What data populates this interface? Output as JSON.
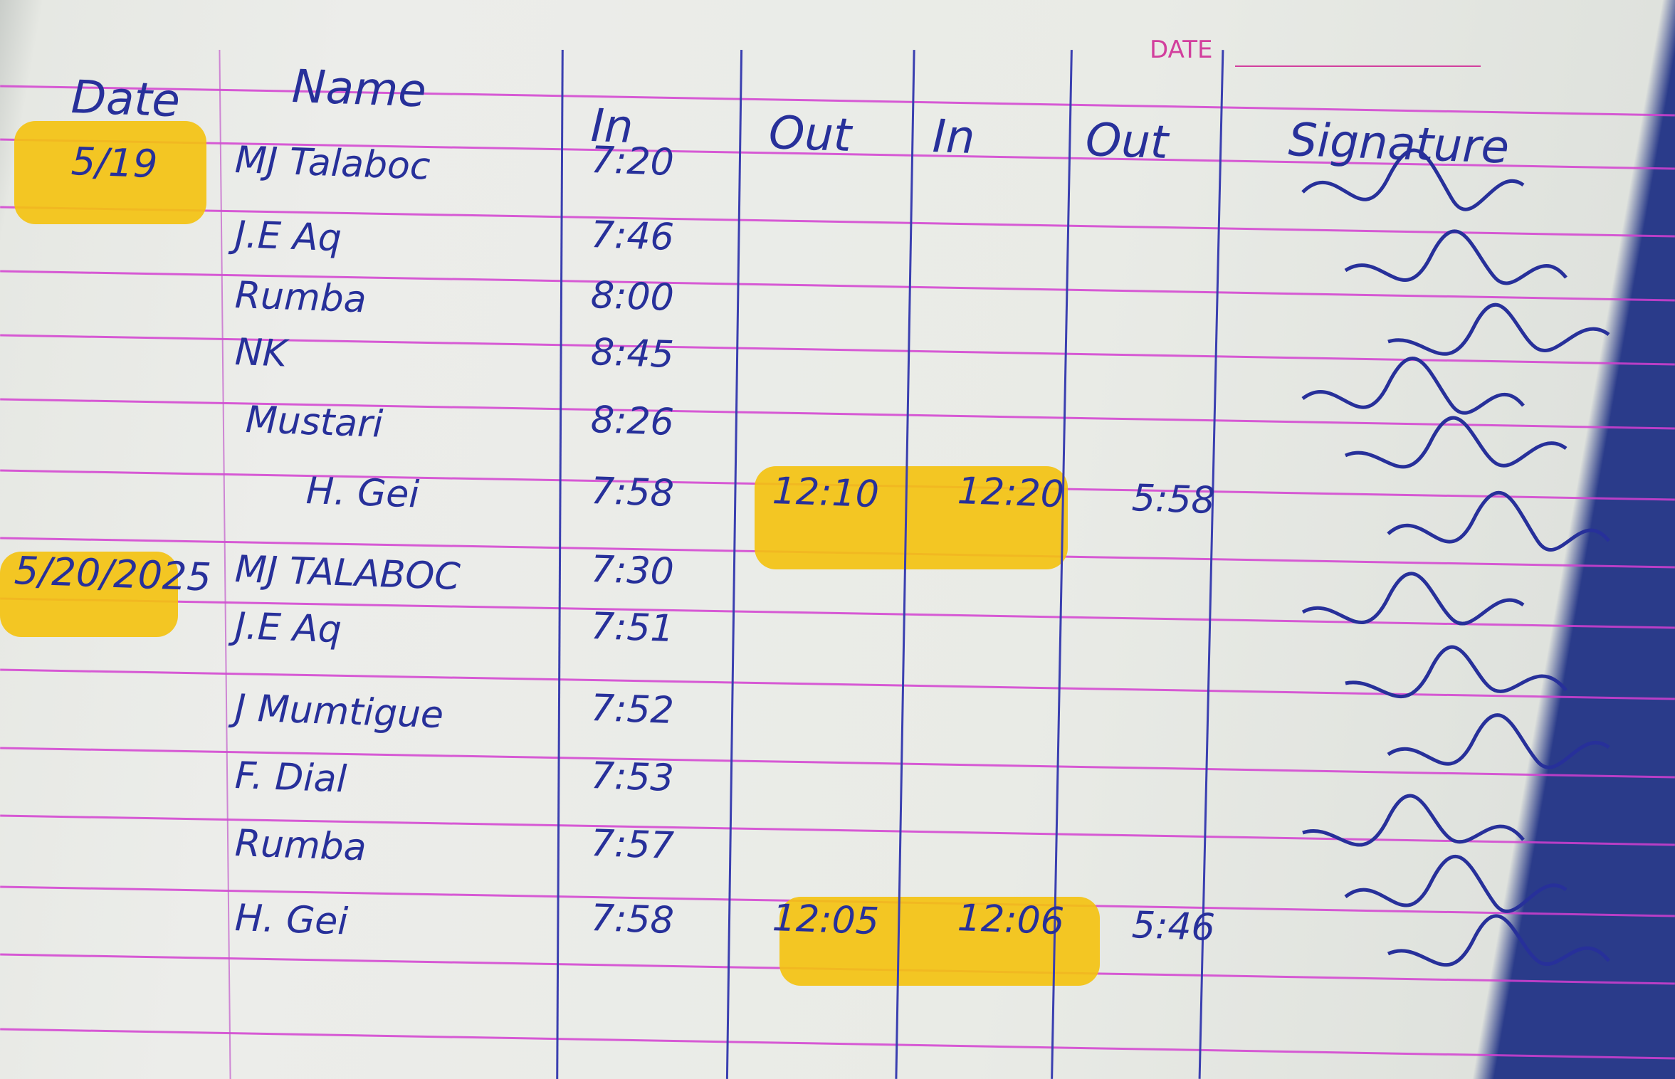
{
  "page": {
    "date_label": "DATE"
  },
  "headers": {
    "date": "Date",
    "name": "Name",
    "in1": "In",
    "out1": "Out",
    "in2": "In",
    "out2": "Out",
    "signature": "Signature"
  },
  "rows": [
    {
      "date": "5/19",
      "name": "MJ Talaboc",
      "in1": "7:20",
      "out1": "",
      "in2": "",
      "out2": ""
    },
    {
      "date": "",
      "name": "J.E Aq",
      "in1": "7:46",
      "out1": "",
      "in2": "",
      "out2": ""
    },
    {
      "date": "",
      "name": "Rumba",
      "in1": "8:00",
      "out1": "",
      "in2": "",
      "out2": ""
    },
    {
      "date": "",
      "name": "NK",
      "in1": "8:45",
      "out1": "",
      "in2": "",
      "out2": ""
    },
    {
      "date": "",
      "name": "Mustari",
      "in1": "8:26",
      "out1": "",
      "in2": "",
      "out2": ""
    },
    {
      "date": "",
      "name": "H. Gei",
      "in1": "7:58",
      "out1": "12:10",
      "in2": "12:20",
      "out2": "5:58"
    },
    {
      "date": "5/20/2025",
      "name": "MJ TALABOC",
      "in1": "7:30",
      "out1": "",
      "in2": "",
      "out2": ""
    },
    {
      "date": "",
      "name": "J.E Aq",
      "in1": "7:51",
      "out1": "",
      "in2": "",
      "out2": ""
    },
    {
      "date": "",
      "name": "J Mumtigue",
      "in1": "7:52",
      "out1": "",
      "in2": "",
      "out2": ""
    },
    {
      "date": "",
      "name": "F. Dial",
      "in1": "7:53",
      "out1": "",
      "in2": "",
      "out2": ""
    },
    {
      "date": "",
      "name": "Rumba",
      "in1": "7:57",
      "out1": "",
      "in2": "",
      "out2": ""
    },
    {
      "date": "",
      "name": "H. Gei",
      "in1": "7:58",
      "out1": "12:05",
      "in2": "12:06",
      "out2": "5:46"
    }
  ],
  "colors": {
    "ink": "#27309a",
    "highlighter": "#f4c20d",
    "ruling": "#d23fd0"
  }
}
